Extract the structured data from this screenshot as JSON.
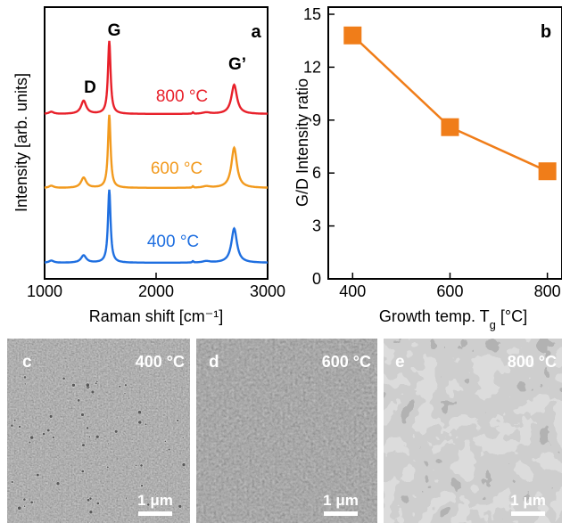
{
  "chart_data": [
    {
      "panel": "a",
      "type": "line",
      "xlabel": "Raman shift [cm⁻¹]",
      "ylabel": "Intensity [arb. units]",
      "xlim": [
        1000,
        3000
      ],
      "xticks": [
        1000,
        2000,
        3000
      ],
      "yticks": "none",
      "grid": false,
      "peak_labels": [
        "D",
        "G",
        "G’"
      ],
      "peak_positions": [
        1350,
        1580,
        2700
      ],
      "series": [
        {
          "name": "800 °C",
          "color": "#e8202a",
          "D": 0.18,
          "G": 1.0,
          "G_prime": 0.4
        },
        {
          "name": "600 °C",
          "color": "#f29a1e",
          "D": 0.14,
          "G": 1.0,
          "G_prime": 0.55
        },
        {
          "name": "400 °C",
          "color": "#1f6fe0",
          "D": 0.1,
          "G": 1.0,
          "G_prime": 0.47
        }
      ]
    },
    {
      "panel": "b",
      "type": "line",
      "xlabel": "Growth temp. T",
      "xlabel_sub": "g",
      "xlabel_unit": " [°C]",
      "ylabel": "G/D Intensity ratio",
      "xlim": [
        350,
        830
      ],
      "ylim": [
        0,
        15
      ],
      "xticks": [
        400,
        600,
        800
      ],
      "yticks": [
        0,
        3,
        6,
        9,
        12,
        15
      ],
      "grid": false,
      "series": [
        {
          "x": [
            400,
            600,
            800
          ],
          "y": [
            13.8,
            8.6,
            6.1
          ],
          "color": "#f07d19",
          "marker": "square"
        }
      ]
    }
  ],
  "panels": {
    "a": "a",
    "b": "b",
    "c": {
      "label": "c",
      "temp": "400 °C",
      "scale": "1 μm"
    },
    "d": {
      "label": "d",
      "temp": "600 °C",
      "scale": "1 μm"
    },
    "e": {
      "label": "e",
      "temp": "800 °C",
      "scale": "1 μm"
    }
  }
}
